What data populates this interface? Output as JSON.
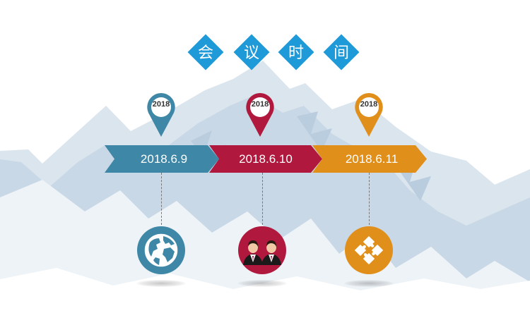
{
  "title": {
    "chars": [
      "会",
      "议",
      "时",
      "间"
    ],
    "color": "#1f9ad9"
  },
  "timeline": [
    {
      "pin_label": "2018",
      "date": "2018.6.9",
      "color": "#3f87a6",
      "icon": "globe-icon"
    },
    {
      "pin_label": "2018",
      "date": "2018.6.10",
      "color": "#b0183e",
      "icon": "people-icon"
    },
    {
      "pin_label": "2018",
      "date": "2018.6.11",
      "color": "#e08f1a",
      "icon": "puzzle-icon"
    }
  ],
  "background": {
    "mountain_color": "#c9d8e6",
    "mountain_shade": "#dbe5ee"
  }
}
